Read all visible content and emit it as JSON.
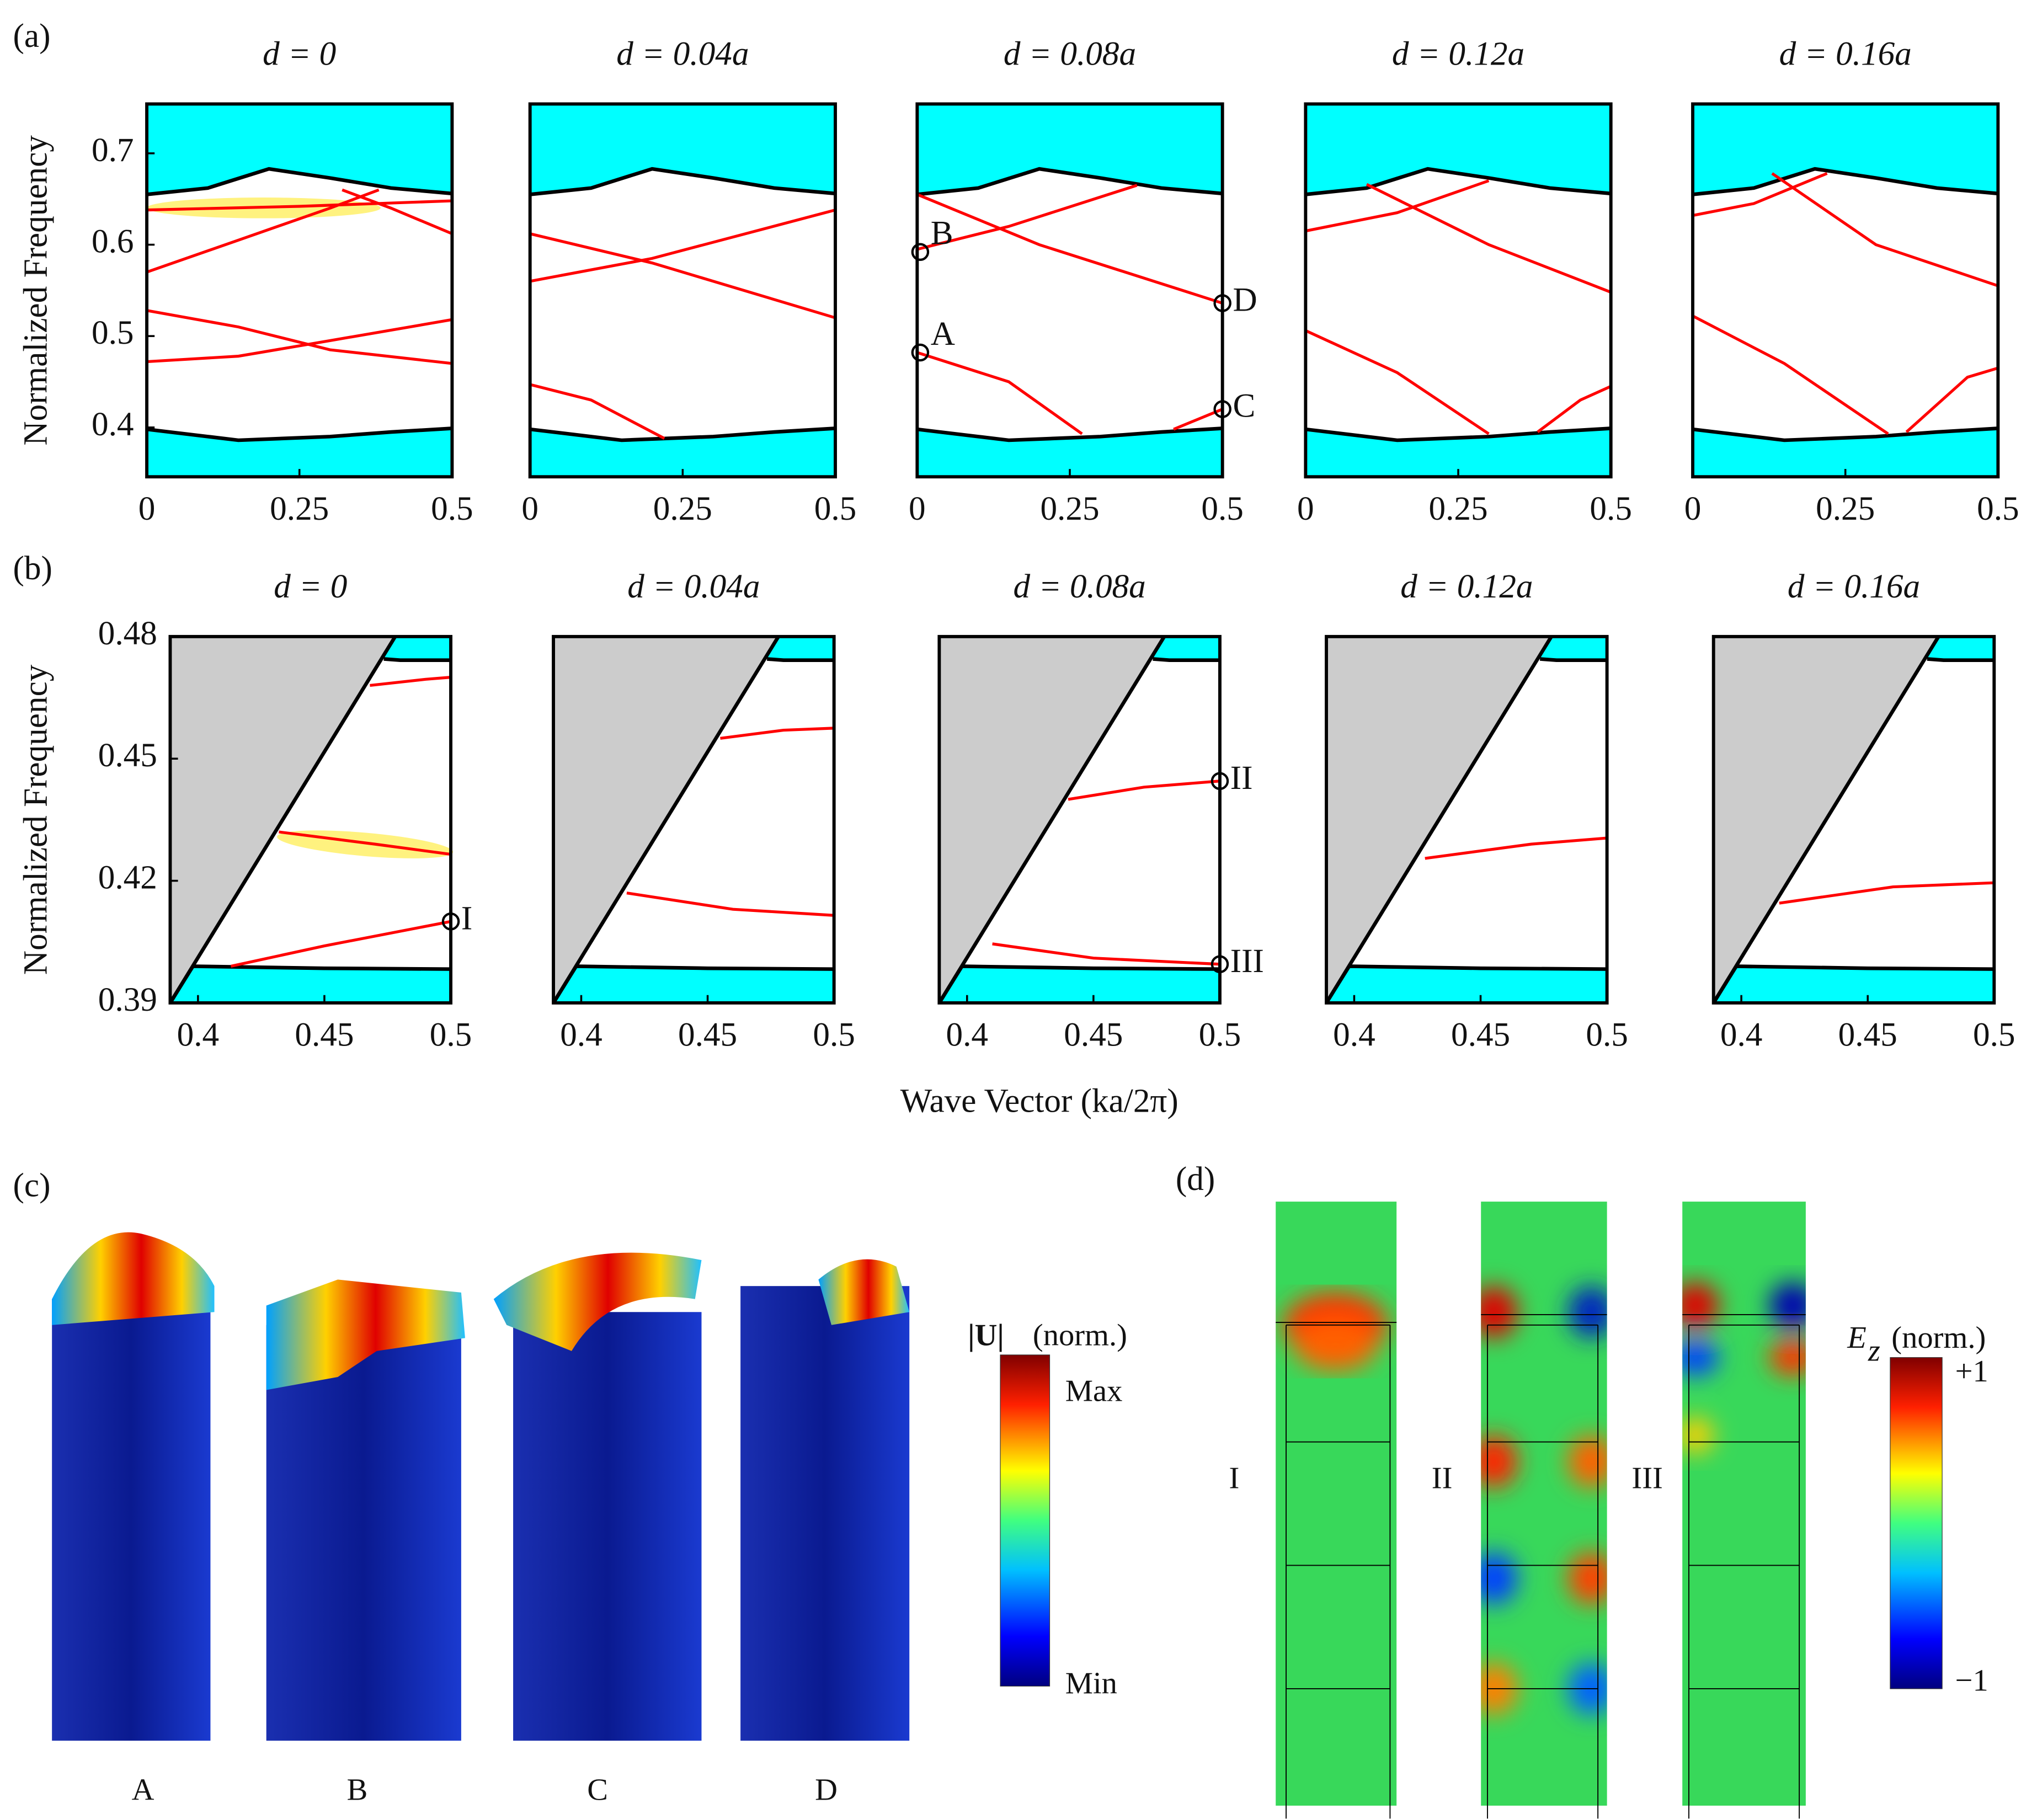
{
  "figure": {
    "panel_labels": [
      "(a)",
      "(b)",
      "(c)",
      "(d)"
    ],
    "xlabel": "Wave Vector (ka/2π)"
  },
  "chart_data": [
    {
      "type": "line",
      "title": "d = 0",
      "xlim": [
        0,
        0.5
      ],
      "ylim": [
        0.346,
        0.754
      ],
      "xticks": [
        0,
        0.25,
        0.5
      ],
      "yticks": [
        0.4,
        0.5,
        0.6,
        0.7
      ],
      "ylabel": "Normalized Frequency",
      "series": [
        {
          "color": "#000000",
          "fill": "above",
          "fill_color": "#00ffff",
          "x": [
            0,
            0.1,
            0.2,
            0.3,
            0.4,
            0.5
          ],
          "values": [
            0.655,
            0.662,
            0.683,
            0.673,
            0.662,
            0.656
          ]
        },
        {
          "color": "#000000",
          "fill": "below",
          "fill_color": "#00ffff",
          "x": [
            0,
            0.1,
            0.15,
            0.3,
            0.4,
            0.5
          ],
          "values": [
            0.398,
            0.39,
            0.386,
            0.39,
            0.395,
            0.399
          ]
        },
        {
          "color": "#ff0000",
          "x": [
            0,
            0.25,
            0.5
          ],
          "values": [
            0.638,
            0.642,
            0.648
          ]
        },
        {
          "color": "#ff0000",
          "x": [
            0,
            0.15,
            0.3,
            0.38
          ],
          "values": [
            0.57,
            0.605,
            0.64,
            0.66
          ]
        },
        {
          "color": "#ff0000",
          "x": [
            0.32,
            0.4,
            0.5
          ],
          "values": [
            0.66,
            0.64,
            0.612
          ]
        },
        {
          "color": "#ff0000",
          "x": [
            0,
            0.15,
            0.3,
            0.5
          ],
          "values": [
            0.528,
            0.51,
            0.485,
            0.47
          ]
        },
        {
          "color": "#ff0000",
          "x": [
            0,
            0.15,
            0.3,
            0.5
          ],
          "values": [
            0.472,
            0.478,
            0.495,
            0.518
          ]
        }
      ]
    },
    {
      "type": "line",
      "title": "d = 0.04a",
      "xlim": [
        0,
        0.5
      ],
      "ylim": [
        0.346,
        0.754
      ],
      "xticks": [
        0,
        0.25,
        0.5
      ],
      "series": [
        {
          "color": "#000000",
          "fill": "above",
          "fill_color": "#00ffff",
          "x": [
            0,
            0.1,
            0.2,
            0.3,
            0.4,
            0.5
          ],
          "values": [
            0.655,
            0.662,
            0.683,
            0.673,
            0.662,
            0.656
          ]
        },
        {
          "color": "#000000",
          "fill": "below",
          "fill_color": "#00ffff",
          "x": [
            0,
            0.1,
            0.15,
            0.3,
            0.4,
            0.5
          ],
          "values": [
            0.398,
            0.39,
            0.386,
            0.39,
            0.395,
            0.399
          ]
        },
        {
          "color": "#ff0000",
          "x": [
            0,
            0.2,
            0.5
          ],
          "values": [
            0.612,
            0.58,
            0.52
          ]
        },
        {
          "color": "#ff0000",
          "x": [
            0,
            0.2,
            0.5
          ],
          "values": [
            0.56,
            0.585,
            0.638
          ]
        },
        {
          "color": "#ff0000",
          "x": [
            0,
            0.1,
            0.22
          ],
          "values": [
            0.447,
            0.43,
            0.388
          ]
        }
      ]
    },
    {
      "type": "line",
      "title": "d = 0.08a",
      "xlim": [
        0,
        0.5
      ],
      "ylim": [
        0.346,
        0.754
      ],
      "xticks": [
        0,
        0.25,
        0.5
      ],
      "series": [
        {
          "color": "#000000",
          "fill": "above",
          "fill_color": "#00ffff",
          "x": [
            0,
            0.1,
            0.2,
            0.3,
            0.4,
            0.5
          ],
          "values": [
            0.655,
            0.662,
            0.683,
            0.673,
            0.662,
            0.656
          ]
        },
        {
          "color": "#000000",
          "fill": "below",
          "fill_color": "#00ffff",
          "x": [
            0,
            0.1,
            0.15,
            0.3,
            0.4,
            0.5
          ],
          "values": [
            0.398,
            0.39,
            0.386,
            0.39,
            0.395,
            0.399
          ]
        },
        {
          "color": "#ff0000",
          "x": [
            0,
            0.15,
            0.36
          ],
          "values": [
            0.595,
            0.62,
            0.665
          ]
        },
        {
          "color": "#ff0000",
          "x": [
            0,
            0.2,
            0.5
          ],
          "values": [
            0.655,
            0.6,
            0.536
          ]
        },
        {
          "color": "#ff0000",
          "x": [
            0,
            0.15,
            0.27
          ],
          "values": [
            0.482,
            0.45,
            0.393
          ]
        },
        {
          "color": "#ff0000",
          "x": [
            0.42,
            0.5
          ],
          "values": [
            0.398,
            0.42
          ]
        }
      ],
      "markers": [
        {
          "label": "A",
          "x": 0.005,
          "y": 0.482
        },
        {
          "label": "B",
          "x": 0.005,
          "y": 0.592
        },
        {
          "label": "C",
          "x": 0.5,
          "y": 0.42
        },
        {
          "label": "D",
          "x": 0.5,
          "y": 0.536
        }
      ]
    },
    {
      "type": "line",
      "title": "d = 0.12a",
      "xlim": [
        0,
        0.5
      ],
      "ylim": [
        0.346,
        0.754
      ],
      "xticks": [
        0,
        0.25,
        0.5
      ],
      "series": [
        {
          "color": "#000000",
          "fill": "above",
          "fill_color": "#00ffff",
          "x": [
            0,
            0.1,
            0.2,
            0.3,
            0.4,
            0.5
          ],
          "values": [
            0.655,
            0.662,
            0.683,
            0.673,
            0.662,
            0.656
          ]
        },
        {
          "color": "#000000",
          "fill": "below",
          "fill_color": "#00ffff",
          "x": [
            0,
            0.1,
            0.15,
            0.3,
            0.4,
            0.5
          ],
          "values": [
            0.398,
            0.39,
            0.386,
            0.39,
            0.395,
            0.399
          ]
        },
        {
          "color": "#ff0000",
          "x": [
            0,
            0.15,
            0.3
          ],
          "values": [
            0.615,
            0.635,
            0.67
          ]
        },
        {
          "color": "#ff0000",
          "x": [
            0.1,
            0.3,
            0.5
          ],
          "values": [
            0.666,
            0.6,
            0.548
          ]
        },
        {
          "color": "#ff0000",
          "x": [
            0,
            0.15,
            0.3
          ],
          "values": [
            0.506,
            0.46,
            0.393
          ]
        },
        {
          "color": "#ff0000",
          "x": [
            0.38,
            0.45,
            0.5
          ],
          "values": [
            0.395,
            0.43,
            0.445
          ]
        }
      ]
    },
    {
      "type": "line",
      "title": "d = 0.16a",
      "xlim": [
        0,
        0.5
      ],
      "ylim": [
        0.346,
        0.754
      ],
      "xticks": [
        0,
        0.25,
        0.5
      ],
      "series": [
        {
          "color": "#000000",
          "fill": "above",
          "fill_color": "#00ffff",
          "x": [
            0,
            0.1,
            0.2,
            0.3,
            0.4,
            0.5
          ],
          "values": [
            0.655,
            0.662,
            0.683,
            0.673,
            0.662,
            0.656
          ]
        },
        {
          "color": "#000000",
          "fill": "below",
          "fill_color": "#00ffff",
          "x": [
            0,
            0.1,
            0.15,
            0.3,
            0.4,
            0.5
          ],
          "values": [
            0.398,
            0.39,
            0.386,
            0.39,
            0.395,
            0.399
          ]
        },
        {
          "color": "#ff0000",
          "x": [
            0,
            0.1,
            0.22
          ],
          "values": [
            0.632,
            0.645,
            0.678
          ]
        },
        {
          "color": "#ff0000",
          "x": [
            0.13,
            0.3,
            0.5
          ],
          "values": [
            0.678,
            0.6,
            0.555
          ]
        },
        {
          "color": "#ff0000",
          "x": [
            0,
            0.15,
            0.32
          ],
          "values": [
            0.522,
            0.47,
            0.393
          ]
        },
        {
          "color": "#ff0000",
          "x": [
            0.35,
            0.45,
            0.5
          ],
          "values": [
            0.395,
            0.455,
            0.465
          ]
        }
      ]
    },
    {
      "type": "line",
      "title": "d = 0",
      "xlim": [
        0.389,
        0.5
      ],
      "ylim": [
        0.39,
        0.48
      ],
      "xticks": [
        0.4,
        0.45,
        0.5
      ],
      "yticks": [
        0.39,
        0.42,
        0.45,
        0.48
      ],
      "ylabel": "Normalized Frequency",
      "series": [
        {
          "color": "#000000",
          "fill": "above",
          "fill_color": "#00ffff",
          "x": [
            0.4735,
            0.48,
            0.5
          ],
          "values": [
            0.4745,
            0.4742,
            0.4742
          ]
        },
        {
          "color": "#000000",
          "fill": "below",
          "fill_color": "#00ffff",
          "x": [
            0.389,
            0.398,
            0.45,
            0.5
          ],
          "values": [
            0.39,
            0.399,
            0.3985,
            0.3983
          ]
        },
        {
          "color": "#000000",
          "fill": "above",
          "fill_color": "#cccccc",
          "x": [
            0.389,
            0.478
          ],
          "values": [
            0.39,
            0.48
          ]
        },
        {
          "color": "#ff0000",
          "x": [
            0.468,
            0.49,
            0.5
          ],
          "values": [
            0.468,
            0.4695,
            0.47
          ]
        },
        {
          "color": "#ff0000",
          "x": [
            0.432,
            0.47,
            0.5
          ],
          "values": [
            0.432,
            0.429,
            0.4265
          ]
        },
        {
          "color": "#ff0000",
          "x": [
            0.413,
            0.45,
            0.5
          ],
          "values": [
            0.399,
            0.404,
            0.41
          ]
        }
      ],
      "markers": [
        {
          "label": "I",
          "x": 0.5,
          "y": 0.41
        }
      ]
    },
    {
      "type": "line",
      "title": "d = 0.04a",
      "xlim": [
        0.389,
        0.5
      ],
      "ylim": [
        0.39,
        0.48
      ],
      "xticks": [
        0.4,
        0.45,
        0.5
      ],
      "series": [
        {
          "color": "#000000",
          "fill": "above",
          "fill_color": "#00ffff",
          "x": [
            0.4735,
            0.48,
            0.5
          ],
          "values": [
            0.4745,
            0.4742,
            0.4742
          ]
        },
        {
          "color": "#000000",
          "fill": "below",
          "fill_color": "#00ffff",
          "x": [
            0.389,
            0.398,
            0.45,
            0.5
          ],
          "values": [
            0.39,
            0.399,
            0.3985,
            0.3983
          ]
        },
        {
          "color": "#000000",
          "fill": "above",
          "fill_color": "#cccccc",
          "x": [
            0.389,
            0.478
          ],
          "values": [
            0.39,
            0.48
          ]
        },
        {
          "color": "#ff0000",
          "x": [
            0.455,
            0.48,
            0.5
          ],
          "values": [
            0.455,
            0.457,
            0.4575
          ]
        },
        {
          "color": "#ff0000",
          "x": [
            0.418,
            0.46,
            0.5
          ],
          "values": [
            0.417,
            0.413,
            0.4115
          ]
        }
      ]
    },
    {
      "type": "line",
      "title": "d = 0.08a",
      "xlim": [
        0.389,
        0.5
      ],
      "ylim": [
        0.39,
        0.48
      ],
      "xticks": [
        0.4,
        0.45,
        0.5
      ],
      "series": [
        {
          "color": "#000000",
          "fill": "above",
          "fill_color": "#00ffff",
          "x": [
            0.4735,
            0.48,
            0.5
          ],
          "values": [
            0.4745,
            0.4742,
            0.4742
          ]
        },
        {
          "color": "#000000",
          "fill": "below",
          "fill_color": "#00ffff",
          "x": [
            0.389,
            0.398,
            0.45,
            0.5
          ],
          "values": [
            0.39,
            0.399,
            0.3985,
            0.3983
          ]
        },
        {
          "color": "#000000",
          "fill": "above",
          "fill_color": "#cccccc",
          "x": [
            0.389,
            0.478
          ],
          "values": [
            0.39,
            0.48
          ]
        },
        {
          "color": "#ff0000",
          "x": [
            0.44,
            0.47,
            0.5
          ],
          "values": [
            0.44,
            0.443,
            0.4445
          ]
        },
        {
          "color": "#ff0000",
          "x": [
            0.41,
            0.45,
            0.5
          ],
          "values": [
            0.4045,
            0.401,
            0.3995
          ]
        }
      ],
      "markers": [
        {
          "label": "II",
          "x": 0.5,
          "y": 0.4445
        },
        {
          "label": "III",
          "x": 0.5,
          "y": 0.3995
        }
      ]
    },
    {
      "type": "line",
      "title": "d = 0.12a",
      "xlim": [
        0.389,
        0.5
      ],
      "ylim": [
        0.39,
        0.48
      ],
      "xticks": [
        0.4,
        0.45,
        0.5
      ],
      "series": [
        {
          "color": "#000000",
          "fill": "above",
          "fill_color": "#00ffff",
          "x": [
            0.4735,
            0.48,
            0.5
          ],
          "values": [
            0.4745,
            0.4742,
            0.4742
          ]
        },
        {
          "color": "#000000",
          "fill": "below",
          "fill_color": "#00ffff",
          "x": [
            0.389,
            0.398,
            0.45,
            0.5
          ],
          "values": [
            0.39,
            0.399,
            0.3985,
            0.3983
          ]
        },
        {
          "color": "#000000",
          "fill": "above",
          "fill_color": "#cccccc",
          "x": [
            0.389,
            0.478
          ],
          "values": [
            0.39,
            0.48
          ]
        },
        {
          "color": "#ff0000",
          "x": [
            0.428,
            0.47,
            0.5
          ],
          "values": [
            0.4255,
            0.429,
            0.4305
          ]
        }
      ]
    },
    {
      "type": "line",
      "title": "d = 0.16a",
      "xlim": [
        0.389,
        0.5
      ],
      "ylim": [
        0.39,
        0.48
      ],
      "xticks": [
        0.4,
        0.45,
        0.5
      ],
      "series": [
        {
          "color": "#000000",
          "fill": "above",
          "fill_color": "#00ffff",
          "x": [
            0.4735,
            0.48,
            0.5
          ],
          "values": [
            0.4745,
            0.4742,
            0.4742
          ]
        },
        {
          "color": "#000000",
          "fill": "below",
          "fill_color": "#00ffff",
          "x": [
            0.389,
            0.398,
            0.45,
            0.5
          ],
          "values": [
            0.39,
            0.399,
            0.3985,
            0.3983
          ]
        },
        {
          "color": "#000000",
          "fill": "above",
          "fill_color": "#cccccc",
          "x": [
            0.389,
            0.478
          ],
          "values": [
            0.39,
            0.48
          ]
        },
        {
          "color": "#ff0000",
          "x": [
            0.415,
            0.46,
            0.5
          ],
          "values": [
            0.4145,
            0.4185,
            0.4195
          ]
        }
      ]
    }
  ],
  "panel_c": {
    "modes": [
      "A",
      "B",
      "C",
      "D"
    ],
    "colorbar": {
      "title": "|U|",
      "unit": "(norm.)",
      "max": "Max",
      "min": "Min"
    }
  },
  "panel_d": {
    "modes": [
      "I",
      "II",
      "III"
    ],
    "colorbar": {
      "symbol": "E",
      "subscript": "z",
      "unit": "(norm.)",
      "max": "+1",
      "min": "−1"
    }
  }
}
